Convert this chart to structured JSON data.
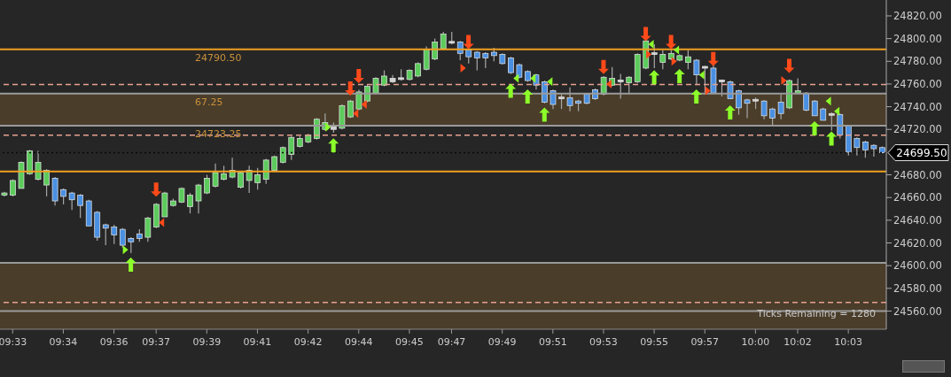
{
  "chart_data": {
    "type": "candlestick",
    "categories": [
      null,
      "09:33",
      null,
      null,
      null,
      null,
      null,
      "09:34",
      null,
      null,
      null,
      null,
      null,
      "09:36",
      null,
      null,
      null,
      null,
      "09:37",
      null,
      null,
      null,
      null,
      null,
      "09:39",
      null,
      null,
      null,
      null,
      null,
      "09:41",
      null,
      null,
      null,
      null,
      null,
      "09:42",
      null,
      null,
      null,
      null,
      null,
      "09:44",
      null,
      null,
      null,
      null,
      null,
      "09:45",
      null,
      null,
      null,
      null,
      "09:47",
      null,
      null,
      null,
      null,
      null,
      "09:49",
      null,
      null,
      null,
      null,
      null,
      "09:51",
      null,
      null,
      null,
      null,
      null,
      "09:53",
      null,
      null,
      null,
      null,
      null,
      "09:55",
      null,
      null,
      null,
      null,
      null,
      "09:57",
      null,
      null,
      null,
      null,
      null,
      "10:00",
      null,
      null,
      null,
      null,
      "10:02",
      null,
      null,
      null,
      null,
      null,
      "10:03",
      null,
      null,
      null,
      null
    ],
    "ohlc": [
      [
        24662,
        24665,
        24661,
        24664
      ],
      [
        24662,
        24676,
        24661,
        24675
      ],
      [
        24668,
        24692,
        24668,
        24691
      ],
      [
        24681,
        24702,
        24680,
        24701
      ],
      [
        24676,
        24701,
        24675,
        24691
      ],
      [
        24671,
        24685,
        24661,
        24684
      ],
      [
        24677,
        24678,
        24653,
        24657
      ],
      [
        24667,
        24668,
        24654,
        24661
      ],
      [
        24664,
        24665,
        24649,
        24658
      ],
      [
        24662,
        24663,
        24642,
        24653
      ],
      [
        24657,
        24658,
        24635,
        24635
      ],
      [
        24647,
        24648,
        24622,
        24625
      ],
      [
        24636,
        24637,
        24618,
        24633
      ],
      [
        24634,
        24636,
        24619,
        24627
      ],
      [
        24632,
        24633,
        24616,
        24618
      ],
      [
        24624,
        24625,
        24611,
        24621
      ],
      [
        24628,
        24632,
        24621,
        24624
      ],
      [
        24625,
        24643,
        24621,
        24642
      ],
      [
        24634,
        24655,
        24633,
        24654
      ],
      [
        24643,
        24665,
        24643,
        24664
      ],
      [
        24653,
        24659,
        24652,
        24657
      ],
      [
        24656,
        24669,
        24655,
        24668
      ],
      [
        24652,
        24664,
        24646,
        24662
      ],
      [
        24657,
        24672,
        24646,
        24671
      ],
      [
        24664,
        24680,
        24663,
        24677
      ],
      [
        24670,
        24690,
        24669,
        24682
      ],
      [
        24676,
        24688,
        24675,
        24681
      ],
      [
        24678,
        24695,
        24677,
        24684
      ],
      [
        24669,
        24683,
        24668,
        24682
      ],
      [
        24675,
        24688,
        24664,
        24684
      ],
      [
        24673,
        24686,
        24667,
        24680
      ],
      [
        24676,
        24694,
        24672,
        24693
      ],
      [
        24684,
        24697,
        24683,
        24696
      ],
      [
        24691,
        24705,
        24690,
        24704
      ],
      [
        24698,
        24714,
        24693,
        24713
      ],
      [
        24705,
        24714,
        24704,
        24712
      ],
      [
        24709,
        24716,
        24708,
        24715
      ],
      [
        24712,
        24730,
        24711,
        24729
      ],
      [
        24720,
        24734,
        24719,
        24726
      ],
      [
        24720,
        24726,
        24717,
        24723
      ],
      [
        24721,
        24742,
        24720,
        24741
      ],
      [
        24731,
        24746,
        24730,
        24745
      ],
      [
        24738,
        24755,
        24737,
        24753
      ],
      [
        24745,
        24759,
        24744,
        24758
      ],
      [
        24752,
        24766,
        24751,
        24765
      ],
      [
        24759,
        24772,
        24758,
        24767
      ],
      [
        24762,
        24768,
        24761,
        24765
      ],
      [
        24764,
        24773,
        24763,
        24765.5
      ],
      [
        24764,
        24773,
        24763,
        24772
      ],
      [
        24767,
        24779,
        24766,
        24778
      ],
      [
        24773,
        24793,
        24772,
        24790.5
      ],
      [
        24782,
        24800,
        24781,
        24797
      ],
      [
        24791,
        24806,
        24790,
        24804
      ],
      [
        24796,
        24806,
        24795,
        24797.5
      ],
      [
        24797,
        24798,
        24781,
        24787
      ],
      [
        24790,
        24791,
        24778,
        24784
      ],
      [
        24788,
        24789,
        24772,
        24783
      ],
      [
        24787,
        24788,
        24774,
        24783
      ],
      [
        24788,
        24792,
        24780,
        24785
      ],
      [
        24786,
        24787,
        24777,
        24778
      ],
      [
        24783,
        24784,
        24769,
        24770
      ],
      [
        24777,
        24778,
        24765,
        24766
      ],
      [
        24771,
        24772,
        24762,
        24763
      ],
      [
        24768,
        24769,
        24755,
        24759
      ],
      [
        24762,
        24763,
        24743,
        24744
      ],
      [
        24754,
        24755,
        24738,
        24742
      ],
      [
        24747,
        24751,
        24738,
        24748.5
      ],
      [
        24748,
        24757,
        24736,
        24741
      ],
      [
        24745,
        24746,
        24736,
        24743
      ],
      [
        24751,
        24752,
        24742,
        24743
      ],
      [
        24755,
        24756,
        24746,
        24747
      ],
      [
        24751,
        24767,
        24750,
        24766
      ],
      [
        24759,
        24775,
        24758,
        24765
      ],
      [
        24762,
        24769,
        24747,
        24763.5
      ],
      [
        24761,
        24767,
        24751,
        24766
      ],
      [
        24762,
        24787,
        24761,
        24786
      ],
      [
        24774,
        24799,
        24773,
        24798
      ],
      [
        24786,
        24795,
        24774,
        24787.5
      ],
      [
        24779,
        24790,
        24773,
        24786
      ],
      [
        24782,
        24791,
        24781,
        24787
      ],
      [
        24781,
        24786,
        24780,
        24785
      ],
      [
        24779,
        24790,
        24773,
        24784
      ],
      [
        24781,
        24782,
        24759,
        24768
      ],
      [
        24774,
        24776,
        24751,
        24775.5
      ],
      [
        24774,
        24777,
        24752,
        24752
      ],
      [
        24762,
        24764,
        24749,
        24763.5
      ],
      [
        24762,
        24763,
        24747,
        24747
      ],
      [
        24754,
        24755,
        24733,
        24739
      ],
      [
        24746,
        24747,
        24730,
        24743
      ],
      [
        24745,
        24748,
        24738,
        24746.5
      ],
      [
        24745,
        24746,
        24729,
        24732
      ],
      [
        24738,
        24739,
        24724,
        24730
      ],
      [
        24744,
        24751,
        24729,
        24734
      ],
      [
        24739,
        24764,
        24738,
        24763
      ],
      [
        24752,
        24765,
        24751,
        24754
      ],
      [
        24752,
        24753,
        24736,
        24737
      ],
      [
        24745,
        24746,
        24732,
        24732
      ],
      [
        24738,
        24739,
        24728,
        24728
      ],
      [
        24734,
        24735,
        24719,
        24732.5
      ],
      [
        24733,
        24734,
        24712,
        24715
      ],
      [
        24723,
        24724,
        24697,
        24700
      ],
      [
        24712,
        24713,
        24697,
        24704
      ],
      [
        24709,
        24710,
        24695,
        24702
      ],
      [
        24706,
        24707,
        24696,
        24703
      ],
      [
        24704,
        24705,
        24699,
        24699.5
      ]
    ],
    "colors": [
      "#5ccb5c",
      "#5ccb5c",
      "#5ccb5c",
      "#5ccb5c",
      "#5ccb5c",
      "#5ccb5c",
      "#4a90e2",
      "#4a90e2",
      "#4a90e2",
      "#4a90e2",
      "#4a90e2",
      "#4a90e2",
      "#4a90e2",
      "#4a90e2",
      "#4a90e2",
      "#4a90e2",
      "#4a90e2",
      "#5ccb5c",
      "#5ccb5c",
      "#5ccb5c",
      "#5ccb5c",
      "#5ccb5c",
      "#5ccb5c",
      "#5ccb5c",
      "#5ccb5c",
      "#5ccb5c",
      "#5ccb5c",
      "#5ccb5c",
      "#5ccb5c",
      "#5ccb5c",
      "#5ccb5c",
      "#5ccb5c",
      "#5ccb5c",
      "#5ccb5c",
      "#5ccb5c",
      "#5ccb5c",
      "#5ccb5c",
      "#5ccb5c",
      "#5ccb5c",
      "#d0d0d0",
      "#5ccb5c",
      "#5ccb5c",
      "#5ccb5c",
      "#5ccb5c",
      "#5ccb5c",
      "#5ccb5c",
      "#d0d0d0",
      "#d0d0d0",
      "#5ccb5c",
      "#5ccb5c",
      "#5ccb5c",
      "#5ccb5c",
      "#5ccb5c",
      "#d0d0d0",
      "#4a90e2",
      "#4a90e2",
      "#4a90e2",
      "#4a90e2",
      "#4a90e2",
      "#4a90e2",
      "#4a90e2",
      "#4a90e2",
      "#4a90e2",
      "#4a90e2",
      "#4a90e2",
      "#4a90e2",
      "#d0d0d0",
      "#4a90e2",
      "#4a90e2",
      "#4a90e2",
      "#4a90e2",
      "#5ccb5c",
      "#5ccb5c",
      "#d0d0d0",
      "#5ccb5c",
      "#5ccb5c",
      "#5ccb5c",
      "#d0d0d0",
      "#5ccb5c",
      "#5ccb5c",
      "#5ccb5c",
      "#5ccb5c",
      "#4a90e2",
      "#d0d0d0",
      "#4a90e2",
      "#d0d0d0",
      "#4a90e2",
      "#4a90e2",
      "#4a90e2",
      "#d0d0d0",
      "#4a90e2",
      "#4a90e2",
      "#4a90e2",
      "#5ccb5c",
      "#5ccb5c",
      "#4a90e2",
      "#4a90e2",
      "#4a90e2",
      "#d0d0d0",
      "#4a90e2",
      "#4a90e2",
      "#4a90e2",
      "#4a90e2",
      "#4a90e2",
      "#4a90e2"
    ],
    "ylim": [
      24544,
      24834
    ],
    "yticks": [
      {
        "value": 24560,
        "label": "24560.00"
      },
      {
        "value": 24580,
        "label": "24580.00"
      },
      {
        "value": 24600,
        "label": "24600.00"
      },
      {
        "value": 24620,
        "label": "24620.00"
      },
      {
        "value": 24640,
        "label": "24640.00"
      },
      {
        "value": 24660,
        "label": "24660.00"
      },
      {
        "value": 24680,
        "label": "24680.00"
      },
      {
        "value": 24720,
        "label": "24720.00"
      },
      {
        "value": 24740,
        "label": "24740.00"
      },
      {
        "value": 24760,
        "label": "24760.00"
      },
      {
        "value": 24780,
        "label": "24780.00"
      },
      {
        "value": 24800,
        "label": "24800.00"
      },
      {
        "value": 24820,
        "label": "24820.00"
      }
    ],
    "bands": [
      {
        "axis": "y",
        "from": 24723.25,
        "to": 24751.5,
        "color": "#4a3d2a",
        "label": "67.25"
      },
      {
        "axis": "y",
        "from": 24544,
        "to": 24602.5,
        "color": "#4a3d2a"
      }
    ],
    "ref_lines": [
      {
        "axis": "y",
        "value": 24790.5,
        "color": "#f0a020",
        "line_style": "solid",
        "label": "24790.50"
      },
      {
        "axis": "y",
        "value": 24683,
        "color": "#f0a020",
        "line_style": "solid"
      },
      {
        "axis": "y",
        "value": 24759.5,
        "color": "#e8a090",
        "line_style": "dashed"
      },
      {
        "axis": "y",
        "value": 24715,
        "color": "#e8a090",
        "line_style": "dashed"
      },
      {
        "axis": "y",
        "value": 24567.5,
        "color": "#e8a090",
        "line_style": "dashed"
      },
      {
        "axis": "y",
        "value": 24751.5,
        "color": "#9a9a9a",
        "line_style": "solid"
      },
      {
        "axis": "y",
        "value": 24723.25,
        "color": "#9a9a9a",
        "line_style": "solid",
        "label": "24723.25"
      },
      {
        "axis": "y",
        "value": 24602.5,
        "color": "#9a9a9a",
        "line_style": "solid"
      },
      {
        "axis": "y",
        "value": 24560,
        "color": "#9a9a9a",
        "line_style": "solid"
      },
      {
        "axis": "y",
        "value": 24699.5,
        "color": "#080808",
        "line_style": "dotted",
        "label": "24699.50"
      }
    ],
    "annotations": [
      "Ticks Remaining = 1280"
    ]
  }
}
